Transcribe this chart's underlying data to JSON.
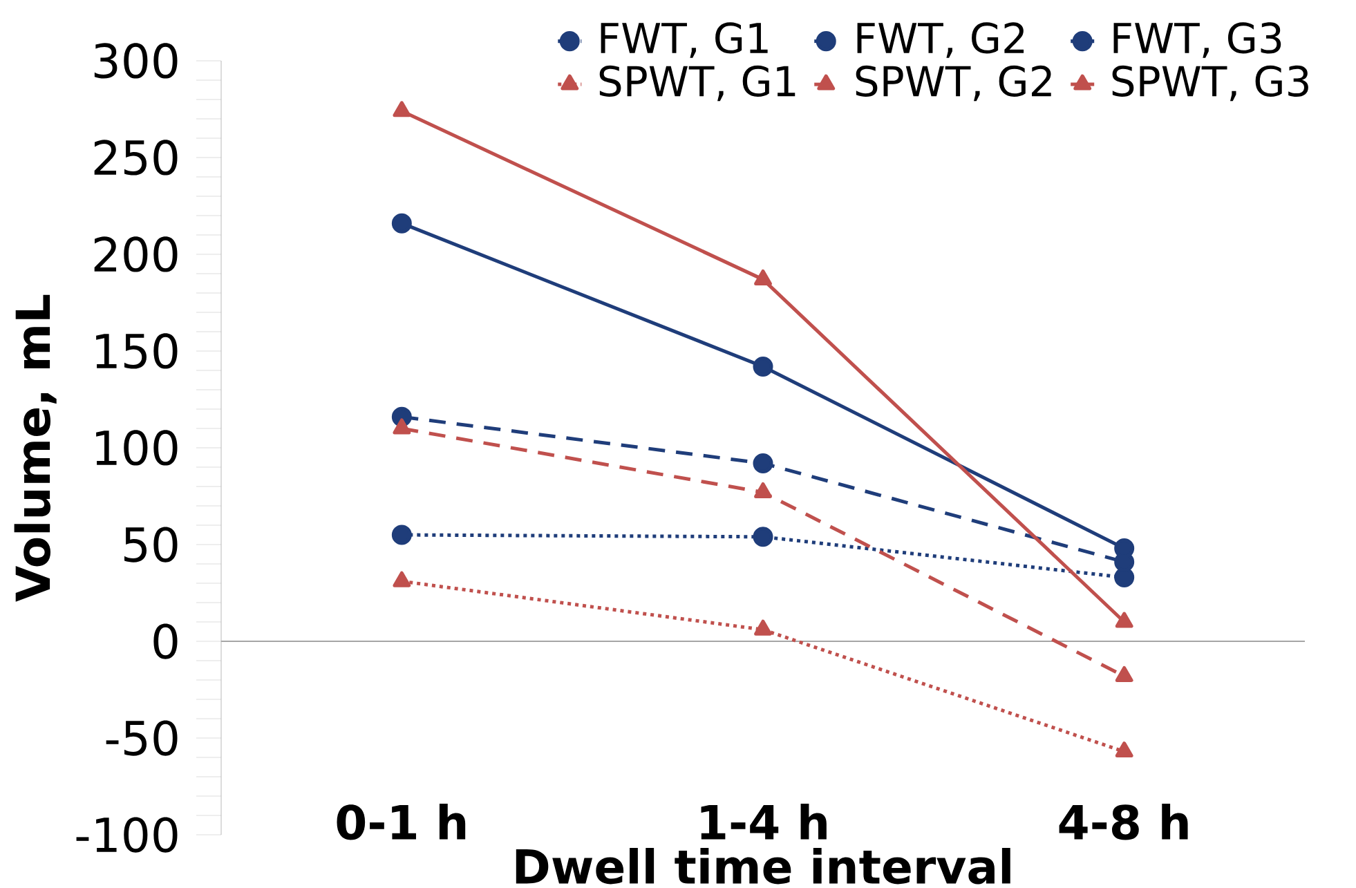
{
  "chart_data": {
    "type": "line",
    "xlabel": "Dwell time interval",
    "ylabel": "Volume, mL",
    "categories": [
      "0-1 h",
      "1-4 h",
      "4-8 h"
    ],
    "ylim": [
      -100,
      300
    ],
    "yticks": [
      -100,
      -50,
      0,
      50,
      100,
      150,
      200,
      250,
      300
    ],
    "grid": false,
    "legend": "top right",
    "ref_lines": [
      {
        "axis": "y",
        "value": 0,
        "color": "#a6a6a6"
      }
    ],
    "series": [
      {
        "name": "FWT, G1",
        "color": "#1f3d7a",
        "marker": "circle",
        "line_style": "dotted",
        "values": [
          55,
          54,
          33
        ]
      },
      {
        "name": "FWT, G2",
        "color": "#1f3d7a",
        "marker": "circle",
        "line_style": "dashed",
        "values": [
          116,
          92,
          41
        ]
      },
      {
        "name": "FWT, G3",
        "color": "#1f3d7a",
        "marker": "circle",
        "line_style": "solid",
        "values": [
          216,
          142,
          48
        ]
      },
      {
        "name": "SPWT, G1",
        "color": "#c0504d",
        "marker": "triangle",
        "line_style": "dotted",
        "values": [
          31,
          6,
          -57
        ]
      },
      {
        "name": "SPWT, G2",
        "color": "#c0504d",
        "marker": "triangle",
        "line_style": "dashed",
        "values": [
          110,
          77,
          -18
        ]
      },
      {
        "name": "SPWT, G3",
        "color": "#c0504d",
        "marker": "triangle",
        "line_style": "solid",
        "values": [
          274,
          187,
          10
        ]
      }
    ]
  }
}
